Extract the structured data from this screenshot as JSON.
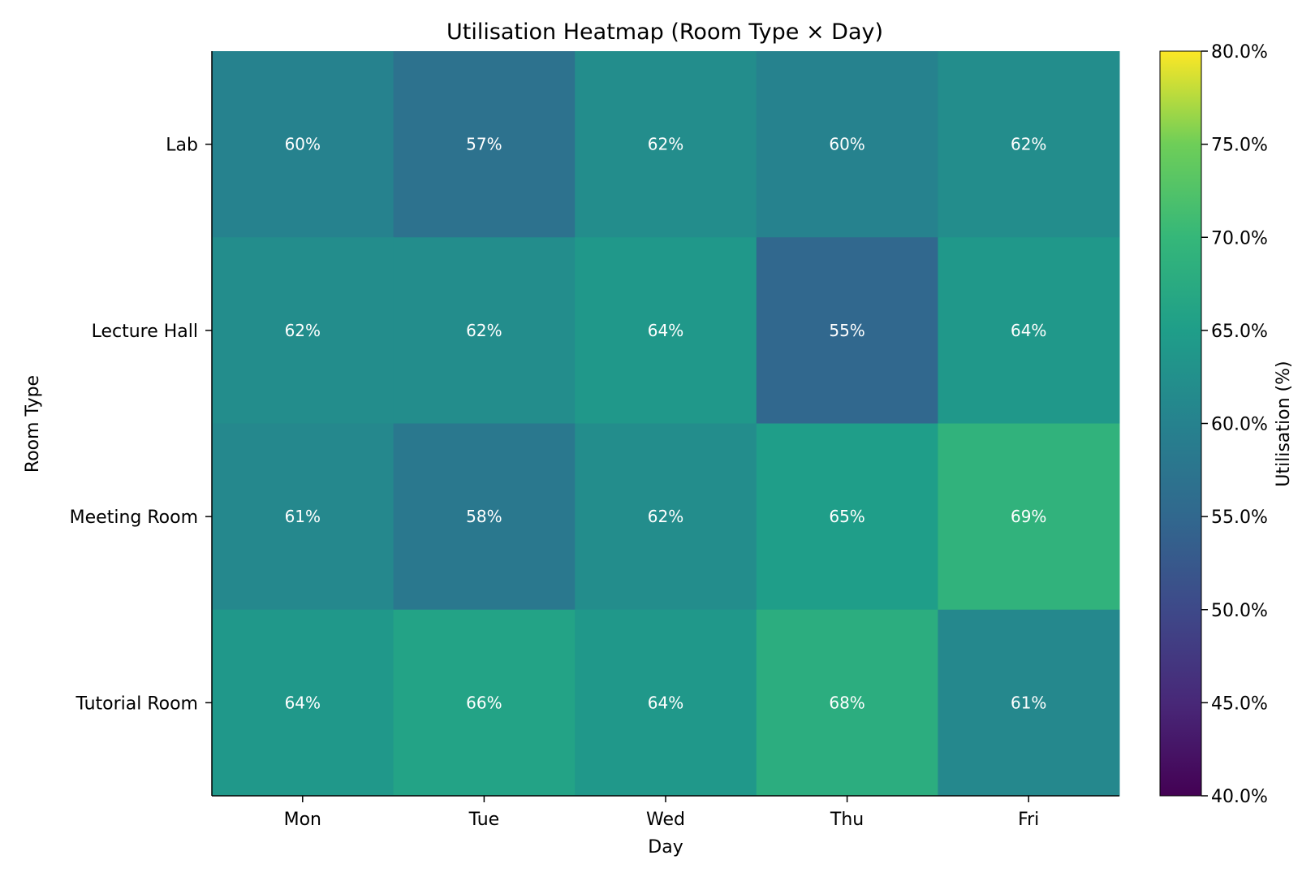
{
  "chart_data": {
    "type": "heatmap",
    "title": "Utilisation Heatmap (Room Type × Day)",
    "xlabel": "Day",
    "ylabel": "Room Type",
    "x_categories": [
      "Mon",
      "Tue",
      "Wed",
      "Thu",
      "Fri"
    ],
    "y_categories": [
      "Lab",
      "Lecture Hall",
      "Meeting Room",
      "Tutorial Room"
    ],
    "values": [
      [
        60,
        57,
        62,
        60,
        62
      ],
      [
        62,
        62,
        64,
        55,
        64
      ],
      [
        61,
        58,
        62,
        65,
        69
      ],
      [
        64,
        66,
        64,
        68,
        61
      ]
    ],
    "cell_labels": [
      [
        "60%",
        "57%",
        "62%",
        "60%",
        "62%"
      ],
      [
        "62%",
        "62%",
        "64%",
        "55%",
        "64%"
      ],
      [
        "61%",
        "58%",
        "62%",
        "65%",
        "69%"
      ],
      [
        "64%",
        "66%",
        "64%",
        "68%",
        "61%"
      ]
    ],
    "colormap": "viridis",
    "colorbar": {
      "label": "Utilisation (%)",
      "range": [
        40,
        80
      ],
      "ticks": [
        40,
        45,
        50,
        55,
        60,
        65,
        70,
        75,
        80
      ],
      "tick_labels": [
        "40.0%",
        "45.0%",
        "50.0%",
        "55.0%",
        "60.0%",
        "65.0%",
        "70.0%",
        "75.0%",
        "80.0%"
      ]
    }
  }
}
